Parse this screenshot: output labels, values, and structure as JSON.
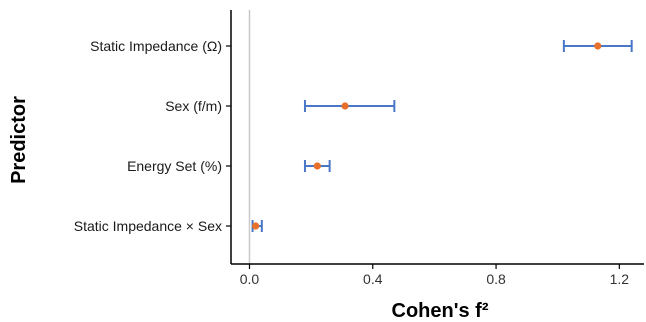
{
  "chart_data": {
    "type": "scatter",
    "orientation": "horizontal",
    "xlabel": "Cohen's f²",
    "ylabel": "Predictor",
    "xlim": [
      -0.06,
      1.28
    ],
    "xticks": [
      0.0,
      0.4,
      0.8,
      1.2
    ],
    "xtick_labels": [
      "0.0",
      "0.4",
      "0.8",
      "1.2"
    ],
    "reference_line": 0.0,
    "grid": false,
    "points": [
      {
        "label": "Static Impedance (Ω)",
        "estimate": 1.13,
        "lower": 1.02,
        "upper": 1.24
      },
      {
        "label": "Sex (f/m)",
        "estimate": 0.31,
        "lower": 0.18,
        "upper": 0.47
      },
      {
        "label": "Energy Set (%)",
        "estimate": 0.22,
        "lower": 0.18,
        "upper": 0.26
      },
      {
        "label": "Static Impedance × Sex",
        "estimate": 0.02,
        "lower": 0.01,
        "upper": 0.04
      }
    ],
    "colors": {
      "point": "#e8702a",
      "errorbar": "#4a76c6",
      "reference": "#c8c8c8",
      "axis": "#000000"
    }
  }
}
